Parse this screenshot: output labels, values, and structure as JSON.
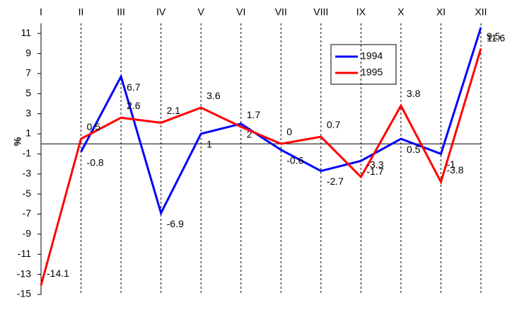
{
  "chart_data": {
    "type": "line",
    "y_label": "%",
    "categories": [
      "I",
      "II",
      "III",
      "IV",
      "V",
      "VI",
      "VII",
      "VIII",
      "IX",
      "X",
      "XI",
      "XII"
    ],
    "series": [
      {
        "name": "1994",
        "color": "#0000ff",
        "values": [
          null,
          -0.8,
          6.7,
          -6.9,
          1,
          2,
          -0.6,
          -2.7,
          -1.7,
          0.5,
          -1,
          11.6
        ]
      },
      {
        "name": "1995",
        "color": "#ff0000",
        "values": [
          -14.1,
          0.5,
          2.6,
          2.1,
          3.6,
          1.7,
          0,
          0.7,
          -3.3,
          3.8,
          -3.8,
          9.5
        ]
      }
    ],
    "ylim": [
      -15,
      12
    ],
    "yticks": [
      -15,
      -13,
      -11,
      -9,
      -7,
      -5,
      -3,
      -1,
      1,
      3,
      5,
      7,
      9,
      11
    ],
    "grid": true
  }
}
